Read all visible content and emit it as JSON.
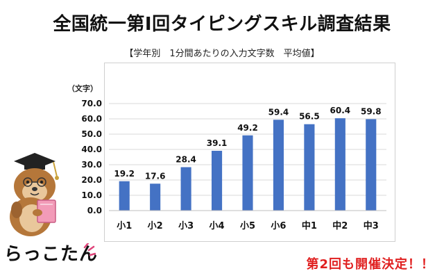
{
  "page": {
    "headline": "全国統一第Ⅰ回タイピングスキル調査結果",
    "brand": "らっこたん",
    "announcement": "第2回も開催決定！！"
  },
  "chart_data": {
    "type": "bar",
    "title": "【学年別　1分間あたりの入力文字数　平均値】",
    "ylabel": "（文字）",
    "xlabel": "",
    "categories": [
      "小1",
      "小2",
      "小3",
      "小4",
      "小5",
      "小6",
      "中1",
      "中2",
      "中3"
    ],
    "values": [
      19.2,
      17.6,
      28.4,
      39.1,
      49.2,
      59.4,
      56.5,
      60.4,
      59.8
    ],
    "value_labels": [
      "19.2",
      "17.6",
      "28.4",
      "39.1",
      "49.2",
      "59.4",
      "56.5",
      "60.4",
      "59.8"
    ],
    "ylim": [
      0,
      70
    ],
    "yticks": [
      "0.0",
      "10.0",
      "20.0",
      "30.0",
      "40.0",
      "50.0",
      "60.0",
      "70.0"
    ],
    "grid": true,
    "bar_color": "#4472c4"
  }
}
